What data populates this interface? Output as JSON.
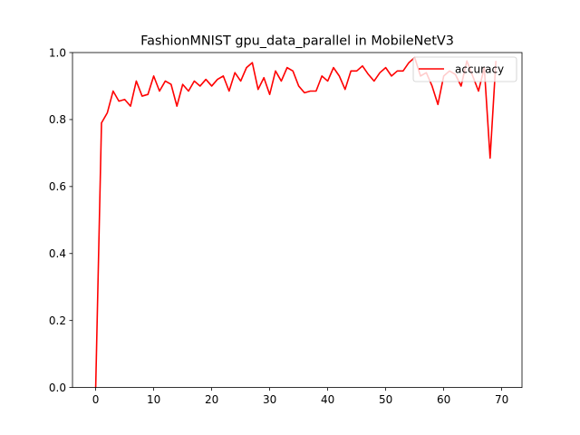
{
  "chart_data": {
    "type": "line",
    "title": "FashionMNIST gpu_data_parallel in MobileNetV3",
    "xlabel": "",
    "ylabel": "",
    "xlim": [
      -4,
      73.5
    ],
    "ylim": [
      0.0,
      1.0
    ],
    "xticks": [
      0,
      10,
      20,
      30,
      40,
      50,
      60,
      70
    ],
    "yticks": [
      0.0,
      0.2,
      0.4,
      0.6,
      0.8,
      1.0
    ],
    "xtick_labels": [
      "0",
      "10",
      "20",
      "30",
      "40",
      "50",
      "60",
      "70"
    ],
    "ytick_labels": [
      "0.0",
      "0.2",
      "0.4",
      "0.6",
      "0.8",
      "1.0"
    ],
    "grid": false,
    "legend_position": "top-right",
    "series": [
      {
        "name": "accuracy",
        "color": "#ff0000",
        "x": [
          0,
          1,
          2,
          3,
          4,
          5,
          6,
          7,
          8,
          9,
          10,
          11,
          12,
          13,
          14,
          15,
          16,
          17,
          18,
          19,
          20,
          21,
          22,
          23,
          24,
          25,
          26,
          27,
          28,
          29,
          30,
          31,
          32,
          33,
          34,
          35,
          36,
          37,
          38,
          39,
          40,
          41,
          42,
          43,
          44,
          45,
          46,
          47,
          48,
          49,
          50,
          51,
          52,
          53,
          54,
          55,
          56,
          57,
          58,
          59,
          60,
          61,
          62,
          63,
          64,
          65,
          66,
          67,
          68,
          69
        ],
        "values": [
          0.0,
          0.79,
          0.82,
          0.885,
          0.855,
          0.86,
          0.84,
          0.915,
          0.87,
          0.875,
          0.93,
          0.885,
          0.915,
          0.905,
          0.84,
          0.905,
          0.885,
          0.915,
          0.9,
          0.92,
          0.9,
          0.92,
          0.93,
          0.885,
          0.94,
          0.915,
          0.955,
          0.97,
          0.89,
          0.925,
          0.875,
          0.945,
          0.915,
          0.955,
          0.945,
          0.9,
          0.88,
          0.885,
          0.885,
          0.93,
          0.915,
          0.955,
          0.93,
          0.89,
          0.945,
          0.945,
          0.96,
          0.935,
          0.915,
          0.94,
          0.955,
          0.93,
          0.945,
          0.945,
          0.97,
          0.985,
          0.93,
          0.94,
          0.9,
          0.845,
          0.93,
          0.945,
          0.935,
          0.9,
          0.975,
          0.93,
          0.885,
          0.955,
          0.685,
          0.975
        ]
      }
    ]
  }
}
